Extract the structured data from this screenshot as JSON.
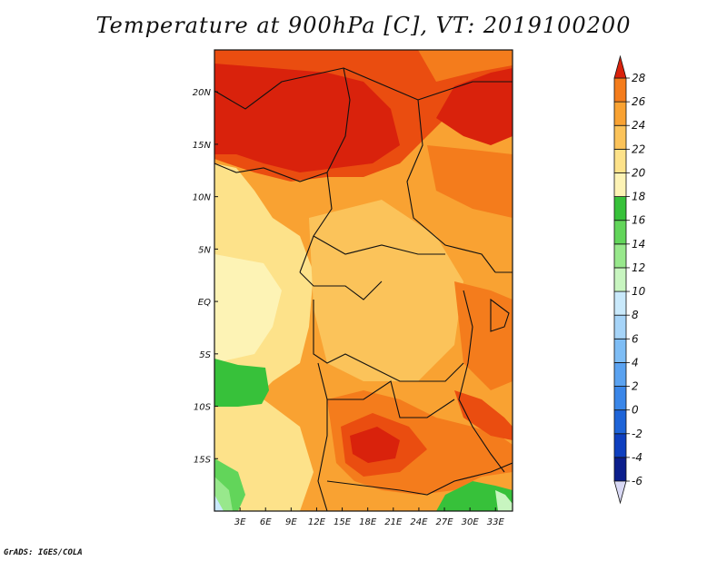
{
  "title": "Temperature at 900hPa [C], VT: 2019100200",
  "credit": "GrADS: IGES/COLA",
  "map": {
    "lon_range": [
      0,
      35
    ],
    "lat_range": [
      -20,
      24
    ],
    "lon_ticks": [
      {
        "lon": 3,
        "label": "3E"
      },
      {
        "lon": 6,
        "label": "6E"
      },
      {
        "lon": 9,
        "label": "9E"
      },
      {
        "lon": 12,
        "label": "12E"
      },
      {
        "lon": 15,
        "label": "15E"
      },
      {
        "lon": 18,
        "label": "18E"
      },
      {
        "lon": 21,
        "label": "21E"
      },
      {
        "lon": 24,
        "label": "24E"
      },
      {
        "lon": 27,
        "label": "27E"
      },
      {
        "lon": 30,
        "label": "30E"
      },
      {
        "lon": 33,
        "label": "33E"
      }
    ],
    "lat_ticks": [
      {
        "lat": 20,
        "label": "20N"
      },
      {
        "lat": 15,
        "label": "15N"
      },
      {
        "lat": 10,
        "label": "10N"
      },
      {
        "lat": 5,
        "label": "5N"
      },
      {
        "lat": 0,
        "label": "EQ"
      },
      {
        "lat": -5,
        "label": "5S"
      },
      {
        "lat": -10,
        "label": "10S"
      },
      {
        "lat": -15,
        "label": "15S"
      }
    ]
  },
  "colorbar": {
    "levels": [
      "-6",
      "-4",
      "-2",
      "0",
      "2",
      "4",
      "6",
      "8",
      "10",
      "12",
      "14",
      "16",
      "18",
      "20",
      "22",
      "24",
      "26",
      "28"
    ],
    "colors": [
      "#0b1e8c",
      "#0e3fbf",
      "#1e64d8",
      "#3a86e8",
      "#5aa2f0",
      "#7ebdf5",
      "#a6d4f8",
      "#c9e9fb",
      "#c8f5c0",
      "#98e88c",
      "#62d55a",
      "#37c13a",
      "#fdf3b5",
      "#fde28a",
      "#fbc35a",
      "#f9a232",
      "#f47c1c",
      "#ea4d10",
      "#d9220c"
    ],
    "under_color": "#d9d9f5",
    "over_color": "#d9220c"
  },
  "colors": {
    "t28": "#d9220c",
    "t26": "#ea4d10",
    "t24": "#f47c1c",
    "t22": "#f9a232",
    "t20": "#fbc35a",
    "t18": "#fde28a",
    "t16": "#fdf3b5",
    "t14": "#37c13a",
    "t12": "#62d55a",
    "t10": "#98e88c",
    "t8": "#c8f5c0",
    "t6": "#c9e9fb"
  }
}
